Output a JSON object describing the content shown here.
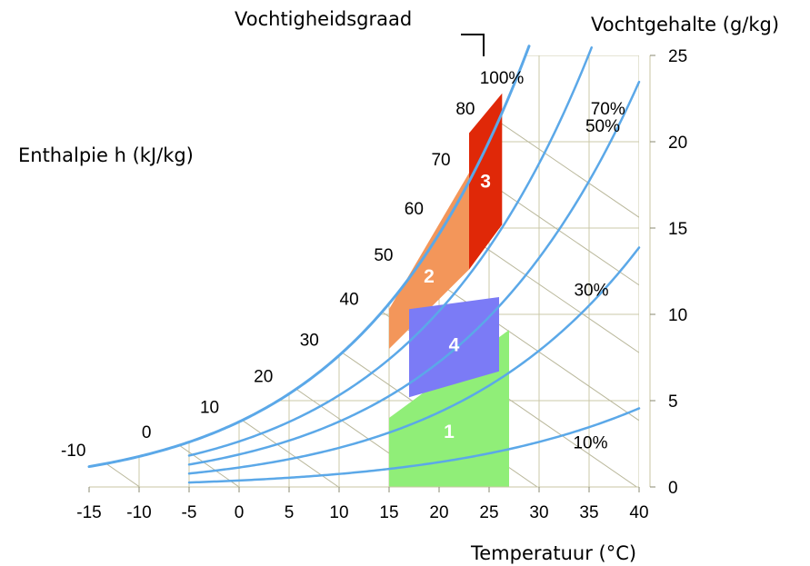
{
  "chart_data": {
    "type": "psychrometric",
    "labels": {
      "rh_title": "Vochtigheidsgraad",
      "moisture_title": "Vochtgehalte (g/kg)",
      "enthalpy_title": "Enthalpie h (kJ/kg)",
      "temperature_title": "Temperatuur (°C)"
    },
    "x_axis": {
      "label": "Temperatuur (°C)",
      "range": [
        -15,
        40
      ],
      "ticks": [
        -15,
        -10,
        -5,
        0,
        5,
        10,
        15,
        20,
        25,
        30,
        35,
        40
      ]
    },
    "y_axis": {
      "label": "Vochtgehalte (g/kg)",
      "position": "right",
      "range": [
        0,
        25
      ],
      "ticks": [
        0,
        5,
        10,
        15,
        20,
        25
      ]
    },
    "enthalpy_lines": {
      "label": "Enthalpie h (kJ/kg)",
      "values": [
        -10,
        0,
        10,
        20,
        30,
        40,
        50,
        60,
        70,
        80
      ]
    },
    "rh_curves": [
      {
        "label": "100%",
        "rh": 100,
        "t_start": -15
      },
      {
        "label": "70%",
        "rh": 70,
        "t_start": -5
      },
      {
        "label": "50%",
        "rh": 50,
        "t_start": -5
      },
      {
        "label": "30%",
        "rh": 30,
        "t_start": -5
      },
      {
        "label": "10%",
        "rh": 10,
        "t_start": -5
      }
    ],
    "zones": [
      {
        "id": "1",
        "color": "#90ee78",
        "points": [
          [
            15,
            0
          ],
          [
            27,
            0
          ],
          [
            27,
            9.1
          ],
          [
            15,
            4.0
          ]
        ]
      },
      {
        "id": "2",
        "color": "#f3965a",
        "points": [
          [
            15,
            10.3
          ],
          [
            15,
            8.0
          ],
          [
            23,
            12.6
          ],
          [
            23,
            18.2
          ]
        ]
      },
      {
        "id": "3",
        "color": "#e02808",
        "points": [
          [
            23,
            12.6
          ],
          [
            23,
            20.5
          ],
          [
            26.3,
            22.8
          ],
          [
            26.3,
            15.2
          ]
        ]
      },
      {
        "id": "4",
        "color": "#7b7bf6",
        "points": [
          [
            17,
            5.2
          ],
          [
            17,
            10.3
          ],
          [
            26,
            11.0
          ],
          [
            26,
            6.7
          ]
        ]
      }
    ],
    "grid": true
  }
}
